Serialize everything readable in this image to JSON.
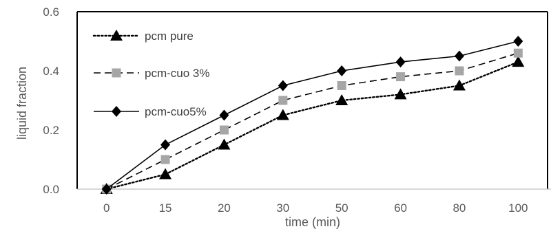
{
  "chart_data": {
    "type": "line",
    "categories": [
      "0",
      "15",
      "20",
      "30",
      "50",
      "60",
      "80",
      "100"
    ],
    "xlabel": "time (min)",
    "ylabel": "liquid fraction",
    "ylim": [
      0,
      0.6
    ],
    "yticks": [
      "0.0",
      "0.2",
      "0.4",
      "0.6"
    ],
    "grid": false,
    "legend_position": "top-left",
    "series": [
      {
        "name": "pcm pure",
        "values": [
          0,
          0.05,
          0.15,
          0.25,
          0.3,
          0.32,
          0.35,
          0.43
        ],
        "color": "#000000",
        "line_style": "dotted",
        "marker": "triangle"
      },
      {
        "name": "pcm-cuo 3%",
        "values": [
          0,
          0.1,
          0.2,
          0.3,
          0.35,
          0.38,
          0.4,
          0.46
        ],
        "color": "#000000",
        "marker_color": "#a6a6a6",
        "line_style": "dashed",
        "marker": "square"
      },
      {
        "name": "pcm-cuo5%",
        "values": [
          0,
          0.15,
          0.25,
          0.35,
          0.4,
          0.43,
          0.45,
          0.5
        ],
        "color": "#000000",
        "line_style": "solid",
        "marker": "diamond"
      }
    ]
  }
}
